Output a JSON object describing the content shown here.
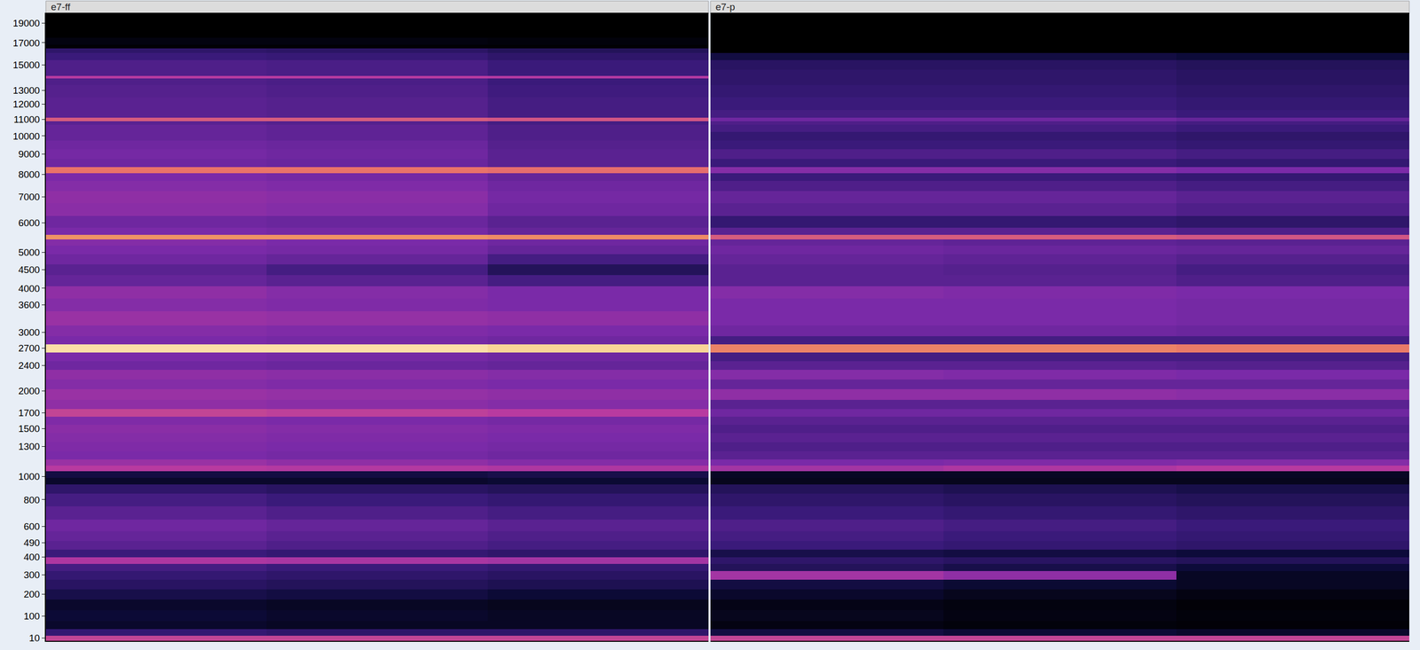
{
  "chart_data": {
    "type": "heatmap",
    "tick_labels": "y",
    "grid": false,
    "ylim": [
      0,
      20000
    ],
    "yticks": [
      10,
      100,
      200,
      300,
      400,
      490,
      600,
      800,
      1000,
      1300,
      1500,
      1700,
      2000,
      2400,
      2700,
      3000,
      3600,
      4000,
      4500,
      5000,
      6000,
      7000,
      8000,
      9000,
      10000,
      11000,
      12000,
      13000,
      15000,
      17000,
      19000
    ],
    "zlim": [
      -100,
      -20
    ],
    "y": [
      10,
      30,
      60,
      100,
      150,
      200,
      250,
      300,
      340,
      380,
      420,
      470,
      530,
      600,
      700,
      800,
      900,
      960,
      1020,
      1080,
      1130,
      1200,
      1300,
      1400,
      1500,
      1600,
      1700,
      1800,
      1950,
      2100,
      2250,
      2400,
      2550,
      2700,
      2850,
      3000,
      3300,
      3600,
      3900,
      4200,
      4500,
      4800,
      5100,
      5350,
      5500,
      5650,
      6000,
      6500,
      7000,
      7500,
      7900,
      8200,
      8500,
      9000,
      9500,
      10000,
      10500,
      10800,
      11000,
      11200,
      12000,
      13000,
      13800,
      14000,
      14200,
      15000,
      15800,
      16300,
      16600,
      17000,
      18000,
      19000,
      20000
    ],
    "tracks": [
      {
        "name": "e7-ff",
        "cells": [
          [
            -42,
            -42,
            -42
          ],
          [
            -70,
            -72,
            -72
          ],
          [
            -88,
            -90,
            -90
          ],
          [
            -85,
            -88,
            -90
          ],
          [
            -88,
            -90,
            -92
          ],
          [
            -80,
            -82,
            -85
          ],
          [
            -74,
            -76,
            -78
          ],
          [
            -70,
            -72,
            -74
          ],
          [
            -66,
            -68,
            -70
          ],
          [
            -46,
            -47,
            -48
          ],
          [
            -68,
            -70,
            -72
          ],
          [
            -62,
            -64,
            -66
          ],
          [
            -60,
            -62,
            -64
          ],
          [
            -58,
            -60,
            -62
          ],
          [
            -62,
            -64,
            -66
          ],
          [
            -66,
            -68,
            -70
          ],
          [
            -72,
            -74,
            -76
          ],
          [
            -88,
            -88,
            -86
          ],
          [
            -82,
            -82,
            -80
          ],
          [
            -44,
            -45,
            -46
          ],
          [
            -50,
            -52,
            -54
          ],
          [
            -56,
            -57,
            -58
          ],
          [
            -55,
            -56,
            -57
          ],
          [
            -54,
            -55,
            -56
          ],
          [
            -53,
            -54,
            -55
          ],
          [
            -55,
            -56,
            -57
          ],
          [
            -42,
            -43,
            -44
          ],
          [
            -52,
            -53,
            -54
          ],
          [
            -50,
            -51,
            -52
          ],
          [
            -54,
            -55,
            -56
          ],
          [
            -52,
            -53,
            -54
          ],
          [
            -58,
            -59,
            -60
          ],
          [
            -56,
            -57,
            -58
          ],
          [
            -22,
            -22,
            -23
          ],
          [
            -56,
            -57,
            -58
          ],
          [
            -54,
            -55,
            -56
          ],
          [
            -50,
            -51,
            -52
          ],
          [
            -54,
            -55,
            -56
          ],
          [
            -52,
            -54,
            -56
          ],
          [
            -60,
            -62,
            -66
          ],
          [
            -62,
            -66,
            -76
          ],
          [
            -58,
            -60,
            -66
          ],
          [
            -56,
            -57,
            -60
          ],
          [
            -54,
            -56,
            -58
          ],
          [
            -30,
            -30,
            -31
          ],
          [
            -56,
            -57,
            -60
          ],
          [
            -58,
            -59,
            -62
          ],
          [
            -53,
            -54,
            -58
          ],
          [
            -52,
            -53,
            -57
          ],
          [
            -54,
            -55,
            -58
          ],
          [
            -56,
            -57,
            -60
          ],
          [
            -34,
            -34,
            -35
          ],
          [
            -58,
            -59,
            -62
          ],
          [
            -57,
            -58,
            -62
          ],
          [
            -58,
            -59,
            -63
          ],
          [
            -60,
            -61,
            -64
          ],
          [
            -60,
            -61,
            -64
          ],
          [
            -62,
            -63,
            -66
          ],
          [
            -38,
            -38,
            -39
          ],
          [
            -62,
            -63,
            -66
          ],
          [
            -62,
            -63,
            -66
          ],
          [
            -63,
            -64,
            -67
          ],
          [
            -64,
            -65,
            -68
          ],
          [
            -44,
            -44,
            -45
          ],
          [
            -64,
            -65,
            -68
          ],
          [
            -64,
            -65,
            -68
          ],
          [
            -68,
            -69,
            -72
          ],
          [
            -72,
            -73,
            -76
          ],
          [
            -99,
            -99,
            -99
          ],
          [
            -96,
            -96,
            -97
          ],
          [
            -100,
            -100,
            -100
          ],
          [
            -100,
            -100,
            -100
          ],
          [
            -100,
            -100,
            -100
          ]
        ]
      },
      {
        "name": "e7-p",
        "cells": [
          [
            -42,
            -42,
            -42
          ],
          [
            -82,
            -85,
            -88
          ],
          [
            -95,
            -97,
            -98
          ],
          [
            -92,
            -95,
            -97
          ],
          [
            -94,
            -96,
            -98
          ],
          [
            -88,
            -92,
            -95
          ],
          [
            -82,
            -86,
            -90
          ],
          [
            -48,
            -52,
            -90
          ],
          [
            -76,
            -80,
            -84
          ],
          [
            -72,
            -74,
            -76
          ],
          [
            -80,
            -82,
            -84
          ],
          [
            -68,
            -70,
            -72
          ],
          [
            -66,
            -68,
            -70
          ],
          [
            -64,
            -66,
            -68
          ],
          [
            -68,
            -70,
            -72
          ],
          [
            -72,
            -74,
            -76
          ],
          [
            -76,
            -78,
            -80
          ],
          [
            -92,
            -92,
            -92
          ],
          [
            -90,
            -90,
            -90
          ],
          [
            -48,
            -46,
            -44
          ],
          [
            -56,
            -55,
            -54
          ],
          [
            -62,
            -62,
            -62
          ],
          [
            -64,
            -64,
            -64
          ],
          [
            -62,
            -62,
            -62
          ],
          [
            -64,
            -64,
            -64
          ],
          [
            -62,
            -62,
            -62
          ],
          [
            -58,
            -58,
            -58
          ],
          [
            -62,
            -62,
            -62
          ],
          [
            -52,
            -52,
            -53
          ],
          [
            -60,
            -60,
            -60
          ],
          [
            -54,
            -55,
            -56
          ],
          [
            -62,
            -62,
            -63
          ],
          [
            -66,
            -66,
            -66
          ],
          [
            -32,
            -32,
            -33
          ],
          [
            -66,
            -66,
            -66
          ],
          [
            -58,
            -58,
            -59
          ],
          [
            -56,
            -56,
            -57
          ],
          [
            -56,
            -56,
            -57
          ],
          [
            -54,
            -55,
            -56
          ],
          [
            -62,
            -62,
            -64
          ],
          [
            -62,
            -63,
            -66
          ],
          [
            -60,
            -61,
            -63
          ],
          [
            -58,
            -59,
            -60
          ],
          [
            -60,
            -61,
            -62
          ],
          [
            -38,
            -38,
            -39
          ],
          [
            -62,
            -62,
            -64
          ],
          [
            -70,
            -70,
            -72
          ],
          [
            -62,
            -62,
            -64
          ],
          [
            -60,
            -60,
            -62
          ],
          [
            -64,
            -64,
            -66
          ],
          [
            -68,
            -68,
            -70
          ],
          [
            -54,
            -54,
            -56
          ],
          [
            -68,
            -68,
            -70
          ],
          [
            -64,
            -64,
            -66
          ],
          [
            -68,
            -68,
            -70
          ],
          [
            -70,
            -70,
            -72
          ],
          [
            -66,
            -66,
            -68
          ],
          [
            -64,
            -64,
            -66
          ],
          [
            -58,
            -58,
            -60
          ],
          [
            -66,
            -66,
            -68
          ],
          [
            -68,
            -68,
            -70
          ],
          [
            -70,
            -70,
            -72
          ],
          [
            -72,
            -72,
            -74
          ],
          [
            -72,
            -72,
            -74
          ],
          [
            -72,
            -72,
            -74
          ],
          [
            -74,
            -74,
            -76
          ],
          [
            -82,
            -82,
            -84
          ],
          [
            -100,
            -100,
            -100
          ],
          [
            -100,
            -100,
            -100
          ],
          [
            -100,
            -100,
            -100
          ],
          [
            -100,
            -100,
            -100
          ],
          [
            -100,
            -100,
            -100
          ],
          [
            -100,
            -100,
            -100
          ]
        ]
      }
    ]
  }
}
